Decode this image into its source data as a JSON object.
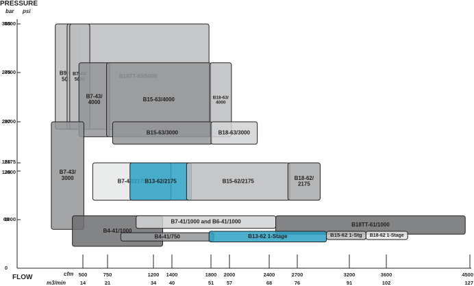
{
  "chart_data": {
    "type": "range-blocks",
    "y_title": "PRESSURE",
    "y_units": [
      "bar",
      "psi"
    ],
    "x_title": "FLOW",
    "x_units": [
      "cfm",
      "m3/min"
    ],
    "y_ticks": [
      {
        "bar": "345",
        "psi": "5000",
        "value": 5000
      },
      {
        "bar": "275",
        "psi": "4000",
        "value": 4000
      },
      {
        "bar": "207",
        "psi": "3000",
        "value": 3000
      },
      {
        "bar": "150",
        "psi": "2175",
        "value": 2175
      },
      {
        "bar": "138",
        "psi": "2000",
        "value": 2000
      },
      {
        "bar": "69",
        "psi": "1000",
        "value": 1000
      },
      {
        "bar": "0",
        "psi": "",
        "value": 0
      }
    ],
    "x_ticks": [
      {
        "cfm": "500",
        "m3": "14",
        "value": 500
      },
      {
        "cfm": "750",
        "m3": "21",
        "value": 750
      },
      {
        "cfm": "1200",
        "m3": "34",
        "value": 1200
      },
      {
        "cfm": "1400",
        "m3": "40",
        "value": 1400
      },
      {
        "cfm": "1800",
        "m3": "51",
        "value": 1800
      },
      {
        "cfm": "2000",
        "m3": "57",
        "value": 2000
      },
      {
        "cfm": "2400",
        "m3": "68",
        "value": 2400
      },
      {
        "cfm": "2700",
        "m3": "76",
        "value": 2700
      },
      {
        "cfm": "3200",
        "m3": "91",
        "value": 3200
      },
      {
        "cfm": "3600",
        "m3": "102",
        "value": 3600
      },
      {
        "cfm": "4500",
        "m3": "127",
        "value": 4500
      }
    ],
    "blocks": [
      {
        "name": "B9-64/5000",
        "x0": 290,
        "x1": 480,
        "y0": 2850,
        "y1": 5000,
        "fill": "#bcbdbf"
      },
      {
        "name": "B18TT-63/5000",
        "x0": 380,
        "x1": 1780,
        "y0": 2850,
        "y1": 5000,
        "fill": "#bcbdbf"
      },
      {
        "name": "B7-44/5000",
        "x0": 400,
        "x1": 570,
        "y0": 2850,
        "y1": 5000,
        "fill": "#bcbdbf"
      },
      {
        "name": "B7-43/4000",
        "x0": 470,
        "x1": 770,
        "y0": 2700,
        "y1": 4200,
        "fill": "#939598"
      },
      {
        "name": "B15-63/4000",
        "x0": 740,
        "x1": 1800,
        "y0": 2700,
        "y1": 4200,
        "fill": "#939598"
      },
      {
        "name": "B18-63/4000",
        "x0": 1790,
        "x1": 2020,
        "y0": 2700,
        "y1": 4200,
        "fill": "#bcbdbf"
      },
      {
        "name": "B7-43/3000",
        "x0": 260,
        "x1": 510,
        "y0": 800,
        "y1": 3000,
        "fill": "#939598"
      },
      {
        "name": "B15-63/3000",
        "x0": 800,
        "x1": 1810,
        "y0": 2550,
        "y1": 3000,
        "fill": "#939598"
      },
      {
        "name": "B18-63/3000",
        "x0": 1800,
        "x1": 2280,
        "y0": 2550,
        "y1": 3000,
        "fill": "#d1d2d4"
      },
      {
        "name": "B7-42/2175",
        "x0": 600,
        "x1": 1390,
        "y0": 1400,
        "y1": 2175,
        "fill": "#e6e7e8"
      },
      {
        "name": "B13-62/2175",
        "x0": 970,
        "x1": 1600,
        "y0": 1400,
        "y1": 2175,
        "fill": "#2aa2c4"
      },
      {
        "name": "B15-62/2175",
        "x0": 1550,
        "x1": 2620,
        "y0": 1400,
        "y1": 2175,
        "fill": "#bcbdbf"
      },
      {
        "name": "B18-62/2175",
        "x0": 2600,
        "x1": 2920,
        "y0": 1400,
        "y1": 2175,
        "fill": "#a7a9ac"
      },
      {
        "name": "B4-41/1000",
        "x0": 420,
        "x1": 1300,
        "y0": 450,
        "y1": 1080,
        "fill": "#6d6e71"
      },
      {
        "name": "B7-41/1000 and B6-41/1000",
        "x0": 1030,
        "x1": 2470,
        "y0": 820,
        "y1": 1080,
        "fill": "#d1d2d4"
      },
      {
        "name": "B18TT-61/1000",
        "x0": 2470,
        "x1": 4450,
        "y0": 700,
        "y1": 1080,
        "fill": "#6d6e71"
      },
      {
        "name": "B4-41/750",
        "x0": 880,
        "x1": 1830,
        "y0": 560,
        "y1": 730,
        "fill": "#939598"
      },
      {
        "name": "B13-62 1-Stage",
        "x0": 1780,
        "x1": 2980,
        "y0": 540,
        "y1": 760,
        "fill": "#2aa2c4"
      },
      {
        "name": "B15-62 1-Stg",
        "x0": 2980,
        "x1": 3380,
        "y0": 590,
        "y1": 760,
        "fill": "#bcbdbf"
      },
      {
        "name": "B18-62 1-Stage",
        "x0": 3380,
        "x1": 3830,
        "y0": 590,
        "y1": 760,
        "fill": "#e6e7e8"
      }
    ]
  }
}
